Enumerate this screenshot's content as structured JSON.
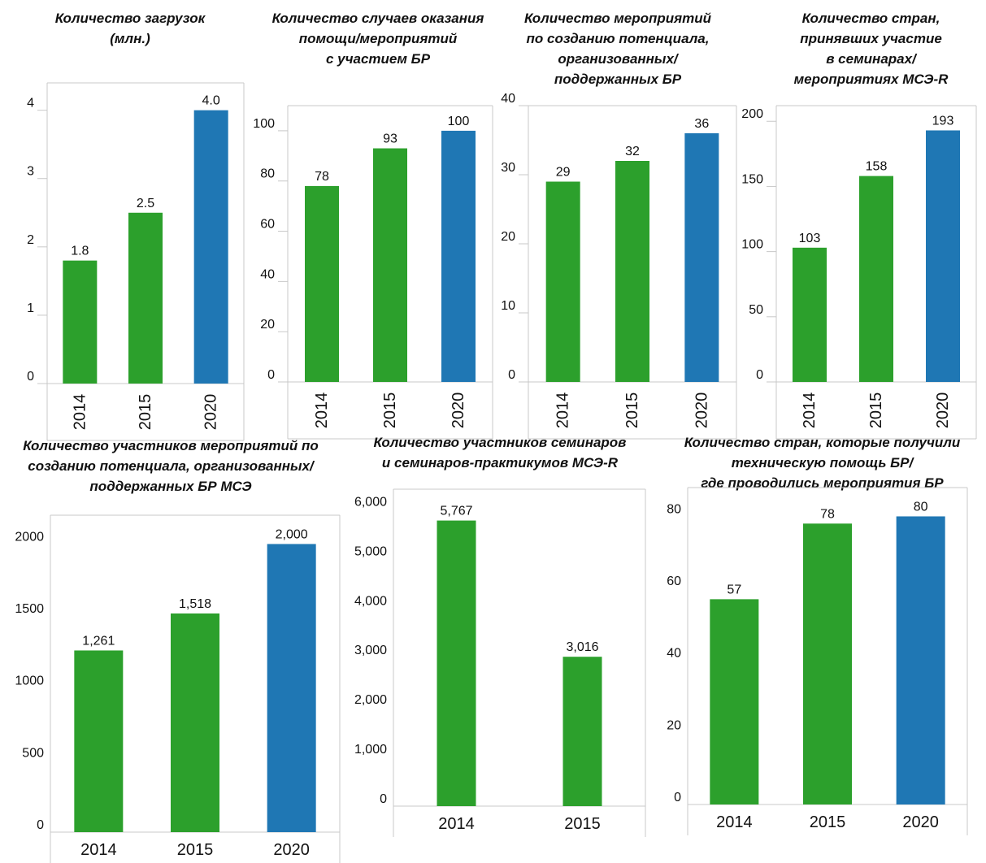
{
  "colors": {
    "past": "#2ca02c",
    "target": "#1f77b4",
    "axis": "#c8c8c8"
  },
  "chart_data": [
    {
      "type": "bar",
      "title": "Количество загрузок\n(млн.)",
      "categories": [
        "2014",
        "2015",
        "2020"
      ],
      "values": [
        1.8,
        2.5,
        4.0
      ],
      "value_labels": [
        "1.8",
        "2.5",
        "4.0"
      ],
      "bar_colors": [
        "past",
        "past",
        "target"
      ],
      "ylim": [
        0,
        4.4
      ],
      "yticks": [
        0,
        1,
        2,
        3,
        4
      ],
      "ytick_labels": [
        "0",
        "1",
        "2",
        "3",
        "4"
      ],
      "xlabel_orientation": "vertical"
    },
    {
      "type": "bar",
      "title": "Количество случаев оказания\nпомощи/мероприятий\nс участием БР",
      "categories": [
        "2014",
        "2015",
        "2020"
      ],
      "values": [
        78,
        93,
        100
      ],
      "value_labels": [
        "78",
        "93",
        "100"
      ],
      "bar_colors": [
        "past",
        "past",
        "target"
      ],
      "ylim": [
        0,
        110
      ],
      "yticks": [
        0,
        20,
        40,
        60,
        80,
        100
      ],
      "ytick_labels": [
        "0",
        "20",
        "40",
        "60",
        "80",
        "100"
      ],
      "xlabel_orientation": "vertical"
    },
    {
      "type": "bar",
      "title": "Количество мероприятий\nпо созданию потенциала,\nорганизованных/\nподдержанных БР",
      "categories": [
        "2014",
        "2015",
        "2020"
      ],
      "values": [
        29,
        32,
        36
      ],
      "value_labels": [
        "29",
        "32",
        "36"
      ],
      "bar_colors": [
        "past",
        "past",
        "target"
      ],
      "ylim": [
        0,
        40
      ],
      "yticks": [
        0,
        10,
        20,
        30,
        40
      ],
      "ytick_labels": [
        "0",
        "10",
        "20",
        "30",
        "40"
      ],
      "xlabel_orientation": "vertical"
    },
    {
      "type": "bar",
      "title": "Количество стран,\nпринявших участие\nв семинарах/\nмероприятиях МСЭ-R",
      "categories": [
        "2014",
        "2015",
        "2020"
      ],
      "values": [
        103,
        158,
        193
      ],
      "value_labels": [
        "103",
        "158",
        "193"
      ],
      "bar_colors": [
        "past",
        "past",
        "target"
      ],
      "ylim": [
        0,
        212
      ],
      "yticks": [
        0,
        50,
        100,
        150,
        200
      ],
      "ytick_labels": [
        "0",
        "50",
        "100",
        "150",
        "200"
      ],
      "xlabel_orientation": "vertical"
    },
    {
      "type": "bar",
      "title": "Количество участников мероприятий по\nсозданию потенциала, организованных/\nподдержанных БР МСЭ",
      "categories": [
        "2014",
        "2015",
        "2020"
      ],
      "values": [
        1261,
        1518,
        2000
      ],
      "value_labels": [
        "1,261",
        "1,518",
        "2,000"
      ],
      "bar_colors": [
        "past",
        "past",
        "target"
      ],
      "ylim": [
        0,
        2200
      ],
      "yticks": [
        0,
        500,
        1000,
        1500,
        2000
      ],
      "ytick_labels": [
        "0",
        "500",
        "1000",
        "1500",
        "2000"
      ],
      "xlabel_orientation": "horizontal"
    },
    {
      "type": "bar",
      "title": "Количество участников семинаров\nи семинаров-практикумов МСЭ-R",
      "categories": [
        "2014",
        "2015"
      ],
      "values": [
        5767,
        3016
      ],
      "value_labels": [
        "5,767",
        "3,016"
      ],
      "bar_colors": [
        "past",
        "past"
      ],
      "ylim": [
        0,
        6400
      ],
      "yticks": [
        0,
        1000,
        2000,
        3000,
        4000,
        5000,
        6000
      ],
      "ytick_labels": [
        "0",
        "1,000",
        "2,000",
        "3,000",
        "4,000",
        "5,000",
        "6,000"
      ],
      "xlabel_orientation": "horizontal"
    },
    {
      "type": "bar",
      "title": "Количество стран, которые получили\nтехническую помощь БР/\nгде проводились мероприятия БР",
      "categories": [
        "2014",
        "2015",
        "2020"
      ],
      "values": [
        57,
        78,
        80
      ],
      "value_labels": [
        "57",
        "78",
        "80"
      ],
      "bar_colors": [
        "past",
        "past",
        "target"
      ],
      "ylim": [
        0,
        88
      ],
      "yticks": [
        0,
        20,
        40,
        60,
        80
      ],
      "ytick_labels": [
        "0",
        "20",
        "40",
        "60",
        "80"
      ],
      "xlabel_orientation": "horizontal"
    }
  ]
}
